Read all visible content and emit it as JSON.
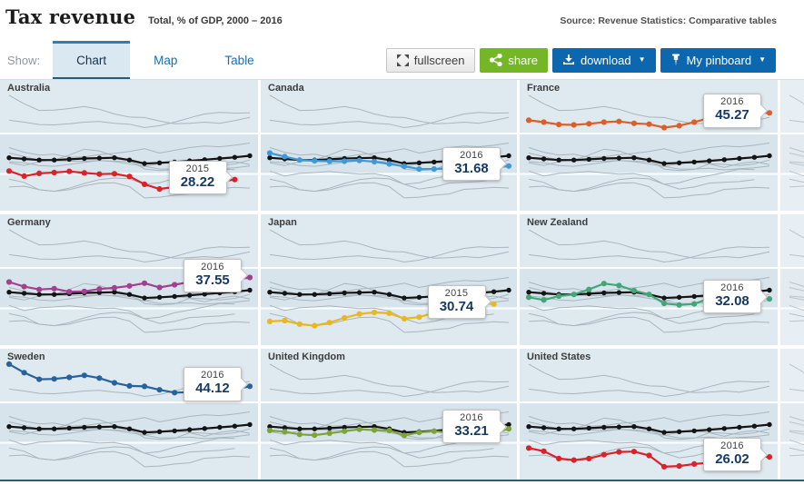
{
  "header": {
    "title": "Tax revenue",
    "subtitle": "Total, % of GDP, 2000 – 2016",
    "source": "Source: Revenue Statistics: Comparative tables"
  },
  "toolbar": {
    "show_label": "Show:",
    "tabs": [
      {
        "label": "Chart",
        "active": true
      },
      {
        "label": "Map",
        "active": false
      },
      {
        "label": "Table",
        "active": false
      }
    ],
    "buttons": {
      "fullscreen": "fullscreen",
      "share": "share",
      "download": "download",
      "pinboard": "My pinboard"
    },
    "icons": {
      "caret": "▼"
    }
  },
  "colors": {
    "panel_bg": "#dee9f0",
    "panel_band": "#d8e4ec",
    "partial_bg": "#e8eff4",
    "partial_band": "#e3ebf1",
    "gridline": "#ffffff",
    "context_line": "#a9b6bd",
    "average_line": "#141414",
    "share_green": "#74b626",
    "action_blue": "#0c67ae",
    "tab_accent": "#2f7db3",
    "bottom_border": "#2c5f6b"
  },
  "chart_data": {
    "type": "line",
    "layout": "3x3 small multiples; highlighted country per panel, OECD average in black, other countries as gray context lines; tooltip on last point",
    "unit": "% of GDP",
    "x_years": [
      2000,
      2001,
      2002,
      2003,
      2004,
      2005,
      2006,
      2007,
      2008,
      2009,
      2010,
      2011,
      2012,
      2013,
      2014,
      2015,
      2016
    ],
    "ylim": [
      20.2,
      53.7
    ],
    "gridline_values": [
      40,
      30
    ],
    "average_series": {
      "name": "OECD average",
      "values": [
        33.8,
        33.5,
        33.2,
        33.2,
        33.4,
        33.6,
        33.7,
        33.8,
        33.2,
        32.3,
        32.5,
        32.7,
        33.0,
        33.3,
        33.6,
        33.9,
        34.3
      ]
    },
    "panels": [
      {
        "title": "Australia",
        "color": "#d8232a",
        "last_year": "2015",
        "last_value": "28.22",
        "values": [
          30.4,
          29.1,
          29.8,
          30.0,
          30.3,
          29.9,
          29.6,
          29.7,
          29.0,
          27.0,
          25.8,
          26.3,
          27.3,
          27.5,
          27.7,
          28.22
        ]
      },
      {
        "title": "Canada",
        "color": "#3f99d6",
        "last_year": "2016",
        "last_value": "31.68",
        "values": [
          35.0,
          34.1,
          33.2,
          33.0,
          32.9,
          32.9,
          33.1,
          32.8,
          32.2,
          31.6,
          30.9,
          30.9,
          31.1,
          30.7,
          31.0,
          31.2,
          31.68
        ]
      },
      {
        "title": "France",
        "color": "#dc5e28",
        "last_year": "2016",
        "last_value": "45.27",
        "values": [
          43.4,
          42.9,
          42.3,
          42.2,
          42.5,
          42.9,
          43.1,
          42.6,
          42.4,
          41.5,
          42.0,
          42.9,
          44.0,
          45.0,
          45.4,
          45.2,
          45.27
        ]
      },
      {
        "title": "Germany",
        "color": "#a2408e",
        "last_year": "2016",
        "last_value": "37.55",
        "values": [
          36.4,
          35.2,
          34.5,
          34.7,
          33.9,
          34.0,
          34.6,
          34.9,
          35.4,
          36.1,
          35.0,
          35.7,
          36.4,
          36.8,
          36.6,
          37.0,
          37.55
        ]
      },
      {
        "title": "Japan",
        "color": "#e9b71f",
        "last_year": "2015",
        "last_value": "30.74",
        "values": [
          26.3,
          26.5,
          25.6,
          25.2,
          26.0,
          27.2,
          28.2,
          28.6,
          28.4,
          27.0,
          27.4,
          28.5,
          29.2,
          30.0,
          30.9,
          30.74
        ]
      },
      {
        "title": "New Zealand",
        "color": "#43a677",
        "last_year": "2016",
        "last_value": "32.08",
        "values": [
          32.5,
          31.8,
          32.8,
          33.2,
          34.5,
          36.0,
          35.5,
          34.2,
          33.2,
          30.9,
          30.5,
          30.8,
          32.2,
          31.3,
          32.3,
          32.8,
          32.08
        ]
      },
      {
        "title": "Sweden",
        "color": "#26639e",
        "last_year": "2016",
        "last_value": "44.12",
        "values": [
          49.8,
          47.6,
          45.9,
          46.0,
          46.4,
          46.9,
          46.2,
          45.0,
          44.2,
          44.1,
          43.2,
          42.5,
          42.6,
          42.9,
          42.6,
          43.3,
          44.12
        ]
      },
      {
        "title": "United Kingdom",
        "color": "#7fa33c",
        "last_year": "2016",
        "last_value": "33.21",
        "values": [
          32.8,
          32.5,
          31.8,
          31.6,
          32.1,
          32.6,
          33.1,
          32.9,
          32.8,
          31.5,
          32.3,
          32.6,
          32.3,
          32.1,
          31.8,
          32.2,
          33.21
        ]
      },
      {
        "title": "United States",
        "color": "#d8232a",
        "last_year": "2016",
        "last_value": "26.02",
        "values": [
          28.3,
          27.5,
          25.6,
          25.2,
          25.6,
          26.6,
          27.3,
          27.4,
          26.4,
          23.5,
          23.7,
          24.2,
          24.5,
          25.7,
          25.9,
          26.2,
          26.02
        ]
      }
    ]
  }
}
